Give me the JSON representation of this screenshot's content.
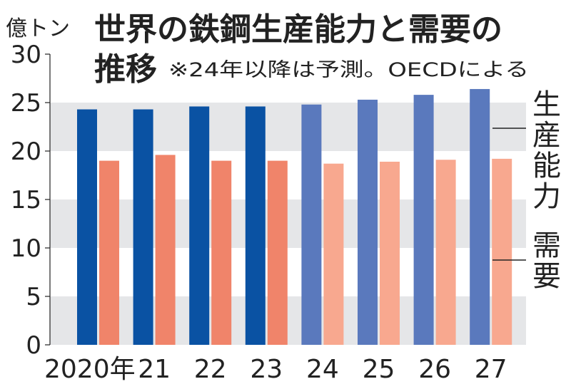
{
  "chart_data": {
    "type": "bar",
    "title_line1": "世界の鉄鋼生産能力と需要の",
    "title_line2": "推移",
    "note": "※24年以降は予測。OECDによる",
    "ylabel": "億トン",
    "ylim": [
      0,
      30
    ],
    "yticks": [
      "0",
      "5",
      "10",
      "15",
      "20",
      "25",
      "30"
    ],
    "categories": [
      "2020年",
      "21",
      "22",
      "23",
      "24",
      "25",
      "26",
      "27"
    ],
    "forecast_from_index": 4,
    "series": [
      {
        "name": "生産能力",
        "values": [
          24.3,
          24.3,
          24.6,
          24.6,
          24.8,
          25.3,
          25.8,
          26.4
        ]
      },
      {
        "name": "需要",
        "values": [
          19.0,
          19.6,
          19.0,
          19.0,
          18.7,
          18.9,
          19.1,
          19.2
        ]
      }
    ],
    "legend": [
      {
        "name": "生産能力",
        "chars": [
          "生",
          "産",
          "能",
          "力"
        ]
      },
      {
        "name": "需要",
        "chars": [
          "需",
          "要"
        ]
      }
    ],
    "colors": {
      "capacity_actual": "#0a52a3",
      "capacity_forecast": "#5a79bd",
      "demand_actual": "#f0846a",
      "demand_forecast": "#f8a88f",
      "band": "#e5e6e8",
      "text": "#222222"
    }
  }
}
